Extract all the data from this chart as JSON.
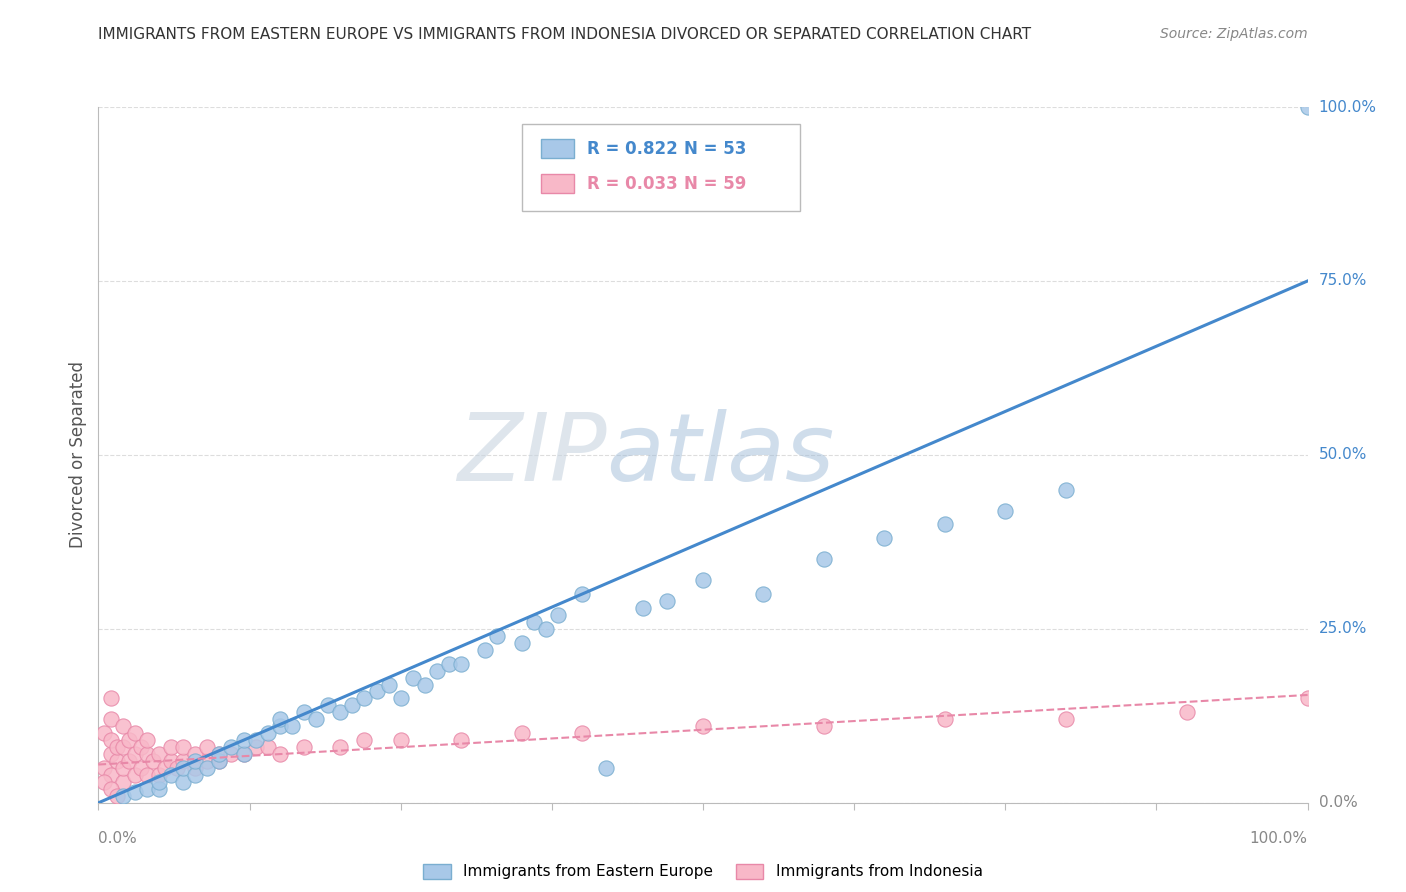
{
  "title": "IMMIGRANTS FROM EASTERN EUROPE VS IMMIGRANTS FROM INDONESIA DIVORCED OR SEPARATED CORRELATION CHART",
  "source": "Source: ZipAtlas.com",
  "ylabel": "Divorced or Separated",
  "xlim": [
    0,
    1.0
  ],
  "ylim": [
    0,
    1.0
  ],
  "ytick_labels": [
    "0.0%",
    "25.0%",
    "50.0%",
    "75.0%",
    "100.0%"
  ],
  "ytick_positions": [
    0.0,
    0.25,
    0.5,
    0.75,
    1.0
  ],
  "legend_r1": "R = 0.822",
  "legend_n1": "N = 53",
  "legend_r2": "R = 0.033",
  "legend_n2": "N = 59",
  "color_blue": "#a8c8e8",
  "color_blue_edge": "#7aaed0",
  "color_pink": "#f8b8c8",
  "color_pink_edge": "#e888a8",
  "line_blue": "#4488cc",
  "line_pink_dash": "#e888a8",
  "label_blue": "#4488cc",
  "label_pink": "#e888a8",
  "watermark_color": "#ccdcee",
  "background": "#ffffff",
  "grid_color": "#dddddd",
  "blue_scatter_x": [
    0.02,
    0.03,
    0.04,
    0.05,
    0.05,
    0.06,
    0.07,
    0.07,
    0.08,
    0.08,
    0.09,
    0.1,
    0.1,
    0.11,
    0.12,
    0.12,
    0.13,
    0.14,
    0.15,
    0.15,
    0.16,
    0.17,
    0.18,
    0.19,
    0.2,
    0.21,
    0.22,
    0.23,
    0.24,
    0.25,
    0.26,
    0.27,
    0.28,
    0.29,
    0.3,
    0.32,
    0.33,
    0.35,
    0.36,
    0.37,
    0.38,
    0.4,
    0.42,
    0.45,
    0.47,
    0.5,
    0.55,
    0.6,
    0.65,
    0.7,
    0.75,
    0.8,
    1.0
  ],
  "blue_scatter_y": [
    0.01,
    0.015,
    0.02,
    0.02,
    0.03,
    0.04,
    0.03,
    0.05,
    0.04,
    0.06,
    0.05,
    0.06,
    0.07,
    0.08,
    0.07,
    0.09,
    0.09,
    0.1,
    0.11,
    0.12,
    0.11,
    0.13,
    0.12,
    0.14,
    0.13,
    0.14,
    0.15,
    0.16,
    0.17,
    0.15,
    0.18,
    0.17,
    0.19,
    0.2,
    0.2,
    0.22,
    0.24,
    0.23,
    0.26,
    0.25,
    0.27,
    0.3,
    0.05,
    0.28,
    0.29,
    0.32,
    0.3,
    0.35,
    0.38,
    0.4,
    0.42,
    0.45,
    1.0
  ],
  "pink_scatter_x": [
    0.005,
    0.005,
    0.01,
    0.01,
    0.01,
    0.01,
    0.01,
    0.015,
    0.015,
    0.02,
    0.02,
    0.02,
    0.02,
    0.025,
    0.025,
    0.03,
    0.03,
    0.03,
    0.035,
    0.035,
    0.04,
    0.04,
    0.04,
    0.045,
    0.05,
    0.05,
    0.055,
    0.06,
    0.06,
    0.065,
    0.07,
    0.07,
    0.08,
    0.08,
    0.09,
    0.09,
    0.1,
    0.1,
    0.11,
    0.12,
    0.13,
    0.14,
    0.15,
    0.17,
    0.2,
    0.22,
    0.25,
    0.3,
    0.35,
    0.4,
    0.5,
    0.6,
    0.7,
    0.8,
    0.9,
    1.0,
    0.005,
    0.01,
    0.015
  ],
  "pink_scatter_y": [
    0.05,
    0.1,
    0.04,
    0.07,
    0.09,
    0.12,
    0.15,
    0.06,
    0.08,
    0.03,
    0.05,
    0.08,
    0.11,
    0.06,
    0.09,
    0.04,
    0.07,
    0.1,
    0.05,
    0.08,
    0.04,
    0.07,
    0.09,
    0.06,
    0.04,
    0.07,
    0.05,
    0.06,
    0.08,
    0.05,
    0.06,
    0.08,
    0.05,
    0.07,
    0.06,
    0.08,
    0.06,
    0.07,
    0.07,
    0.07,
    0.08,
    0.08,
    0.07,
    0.08,
    0.08,
    0.09,
    0.09,
    0.09,
    0.1,
    0.1,
    0.11,
    0.11,
    0.12,
    0.12,
    0.13,
    0.15,
    0.03,
    0.02,
    0.01
  ],
  "blue_line_x0": 0.0,
  "blue_line_y0": 0.0,
  "blue_line_x1": 1.0,
  "blue_line_y1": 0.75,
  "pink_line_x0": 0.0,
  "pink_line_y0": 0.055,
  "pink_line_x1": 1.0,
  "pink_line_y1": 0.155
}
